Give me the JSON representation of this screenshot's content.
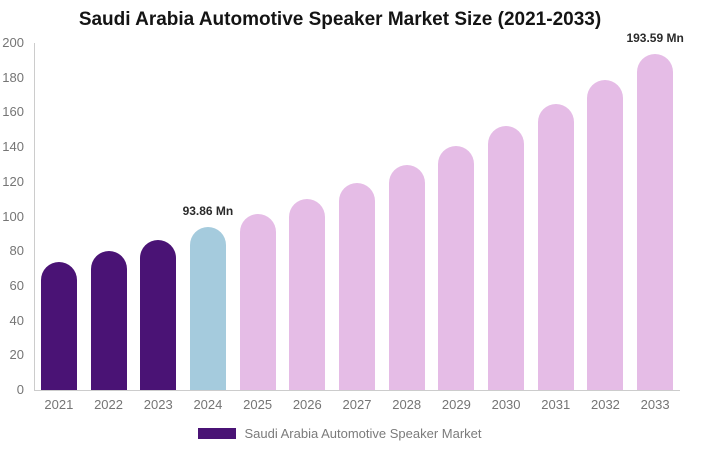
{
  "page": {
    "background_color": "#ffffff"
  },
  "chart_data": {
    "type": "bar",
    "title": "Saudi Arabia Automotive Speaker Market Size (2021-2033)",
    "unit": "Mn",
    "categories": [
      "2021",
      "2022",
      "2023",
      "2024",
      "2025",
      "2026",
      "2027",
      "2028",
      "2029",
      "2030",
      "2031",
      "2032",
      "2033"
    ],
    "values": [
      73.7,
      79.9,
      86.6,
      93.86,
      101.7,
      110.3,
      119.5,
      129.5,
      140.4,
      152.1,
      164.9,
      178.7,
      193.59
    ],
    "bar_colors": [
      "#4a1375",
      "#4a1375",
      "#4a1375",
      "#a5cbdd",
      "#e5bce6",
      "#e5bce6",
      "#e5bce6",
      "#e5bce6",
      "#e5bce6",
      "#e5bce6",
      "#e5bce6",
      "#e5bce6",
      "#e5bce6"
    ],
    "color_roles": {
      "historical": "#4a1375",
      "base_year": "#a5cbdd",
      "forecast": "#e5bce6"
    },
    "ylim": [
      0,
      200
    ],
    "yticks": [
      0,
      20,
      40,
      60,
      80,
      100,
      120,
      140,
      160,
      180,
      200
    ],
    "grid": false,
    "legend_position": "bottom",
    "legend": {
      "label": "Saudi Arabia Automotive Speaker Market",
      "swatch_color": "#4a1375"
    },
    "annotations": [
      {
        "category": "2024",
        "text": "93.86 Mn"
      },
      {
        "category": "2033",
        "text": "193.59 Mn"
      }
    ],
    "axis_color": "#cccccc",
    "tick_label_color": "#757575"
  }
}
